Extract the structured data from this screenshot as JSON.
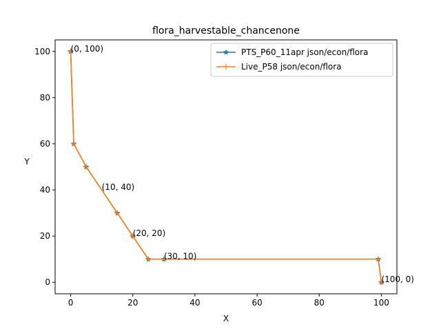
{
  "chart_data": {
    "type": "line",
    "title": "flora_harvestable_chancenone",
    "xlabel": "X",
    "ylabel": "Y",
    "xlim": [
      -5,
      105
    ],
    "ylim": [
      -5,
      105
    ],
    "xticks": [
      0,
      20,
      40,
      60,
      80,
      100
    ],
    "yticks": [
      0,
      20,
      40,
      60,
      80,
      100
    ],
    "grid": false,
    "legend_position": "top-right",
    "series": [
      {
        "name": "PTS_P60_11apr json/econ/flora",
        "color": "#1f77b4",
        "marker": "star",
        "x": [
          0,
          1,
          5,
          15,
          20,
          25,
          30,
          99,
          100
        ],
        "y": [
          100,
          60,
          50,
          30,
          20,
          10,
          10,
          10,
          0
        ]
      },
      {
        "name": "Live_P58 json/econ/flora",
        "color": "#ff7f0e",
        "marker": "plus",
        "x": [
          0,
          1,
          5,
          15,
          20,
          25,
          30,
          99,
          100
        ],
        "y": [
          100,
          60,
          50,
          30,
          20,
          10,
          10,
          10,
          0
        ]
      }
    ],
    "annotations": [
      {
        "text": "(0, 100)",
        "x": 0,
        "y": 100
      },
      {
        "text": "(10, 40)",
        "x": 10,
        "y": 40
      },
      {
        "text": "(20, 20)",
        "x": 20,
        "y": 20
      },
      {
        "text": "(30, 10)",
        "x": 30,
        "y": 10
      },
      {
        "text": "(100, 0)",
        "x": 100,
        "y": 0
      }
    ]
  }
}
